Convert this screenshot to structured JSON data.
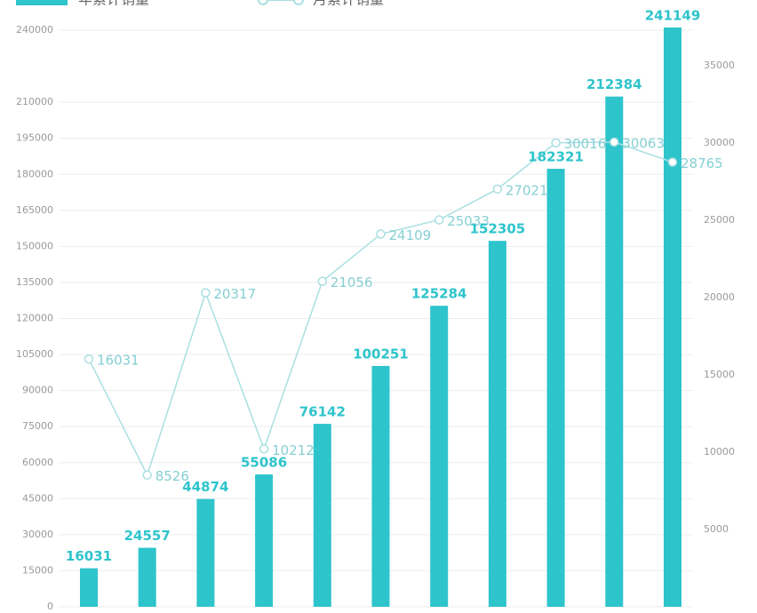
{
  "chart_data": {
    "type": "bar-line",
    "legend": [
      "年累计销量",
      "月累计销量"
    ],
    "series": [
      {
        "name": "年累计销量",
        "type": "bar",
        "color": "#2ec4cc",
        "values": [
          16031,
          24557,
          44874,
          55086,
          76142,
          100251,
          125284,
          152305,
          182321,
          212384,
          241149
        ]
      },
      {
        "name": "月累计销量",
        "type": "line",
        "axis": "y2",
        "color": "#a9dfe1",
        "values": [
          16031,
          8526,
          20317,
          10212,
          21056,
          24109,
          25033,
          27021,
          30016,
          30063,
          28765
        ]
      }
    ],
    "ylim": [
      0,
      240000
    ],
    "yticks": [
      0,
      15000,
      30000,
      45000,
      60000,
      75000,
      90000,
      105000,
      120000,
      135000,
      150000,
      165000,
      180000,
      195000,
      210000,
      240000
    ],
    "y2lim": [
      0,
      37300
    ],
    "y2ticks": [
      5000,
      10000,
      15000,
      20000,
      25000,
      30000,
      35000
    ],
    "grid": true
  }
}
